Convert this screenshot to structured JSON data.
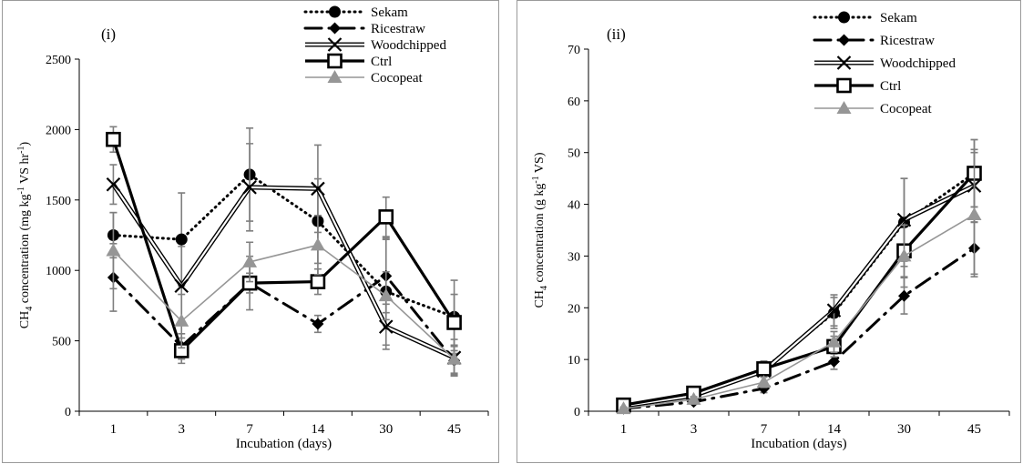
{
  "chart_data": [
    {
      "type": "line",
      "panel_label": "(i)",
      "categories": [
        "1",
        "3",
        "7",
        "14",
        "30",
        "45"
      ],
      "xlabel": "Incubation (days)",
      "ylabel_main": "CH",
      "ylabel_sub": "4",
      "ylabel_rest": " concentration (mg  kg",
      "ylabel_sup1": "-1",
      "ylabel_mid": " VS hr",
      "ylabel_sup2": "-1",
      "ylabel_end": ")",
      "ylim": [
        0,
        2500
      ],
      "yticks": [
        0,
        500,
        1000,
        1500,
        2000,
        2500
      ],
      "grid": false,
      "legend_position": "top-right",
      "series": [
        {
          "name": "Sekam",
          "marker": "circle",
          "line": "dotted",
          "color": "#000000",
          "values": [
            1250,
            1220,
            1680,
            1350,
            850,
            670
          ],
          "errors": [
            160,
            330,
            330,
            300,
            380,
            260
          ]
        },
        {
          "name": "Ricestraw",
          "marker": "diamond",
          "line": "dashdot",
          "color": "#000000",
          "values": [
            950,
            460,
            910,
            620,
            960,
            360
          ],
          "errors": [
            240,
            90,
            190,
            60,
            260,
            100
          ]
        },
        {
          "name": "Woodchipped",
          "marker": "x",
          "line": "double",
          "color": "#000000",
          "values": [
            1610,
            890,
            1590,
            1580,
            600,
            380
          ],
          "errors": [
            140,
            280,
            310,
            310,
            160,
            130
          ]
        },
        {
          "name": "Ctrl",
          "marker": "square",
          "line": "thick",
          "color": "#000000",
          "values": [
            1930,
            430,
            910,
            920,
            1380,
            630
          ],
          "errors": [
            90,
            90,
            70,
            90,
            140,
            200
          ]
        },
        {
          "name": "Cocopeat",
          "marker": "triangle",
          "line": "solid",
          "color": "#969696",
          "values": [
            1140,
            640,
            1060,
            1180,
            820,
            370
          ],
          "errors": [
            270,
            190,
            140,
            210,
            170,
            100
          ]
        }
      ]
    },
    {
      "type": "line",
      "panel_label": "(ii)",
      "categories": [
        "1",
        "3",
        "7",
        "14",
        "30",
        "45"
      ],
      "xlabel": "Incubation (days)",
      "ylabel_main": "CH",
      "ylabel_sub": "4",
      "ylabel_rest": " concentration (g  kg",
      "ylabel_sup1": "-1",
      "ylabel_mid": " VS)",
      "ylabel_sup2": "",
      "ylabel_end": "",
      "ylim": [
        0,
        70
      ],
      "yticks": [
        0,
        10,
        20,
        30,
        40,
        50,
        60,
        70
      ],
      "grid": false,
      "legend_position": "top-right",
      "series": [
        {
          "name": "Sekam",
          "marker": "circle",
          "line": "dotted",
          "color": "#000000",
          "values": [
            1.0,
            3.2,
            8.2,
            19.0,
            36.5,
            46.0
          ],
          "errors": [
            0.4,
            0.5,
            1.5,
            3.0,
            8.5,
            6.5
          ]
        },
        {
          "name": "Ricestraw",
          "marker": "diamond",
          "line": "dashdot",
          "color": "#000000",
          "values": [
            0.5,
            1.8,
            4.4,
            9.6,
            22.3,
            31.5
          ],
          "errors": [
            0.3,
            0.4,
            0.8,
            1.5,
            3.5,
            5.0
          ]
        },
        {
          "name": "Woodchipped",
          "marker": "x",
          "line": "double",
          "color": "#000000",
          "values": [
            1.0,
            3.0,
            7.8,
            19.5,
            37.0,
            43.6
          ],
          "errors": [
            0.4,
            0.5,
            1.2,
            3.0,
            8.0,
            7.0
          ]
        },
        {
          "name": "Ctrl",
          "marker": "square",
          "line": "thick",
          "color": "#000000",
          "values": [
            1.2,
            3.5,
            8.2,
            12.5,
            31.0,
            46.0
          ],
          "errors": [
            0.4,
            0.5,
            1.0,
            2.0,
            5.0,
            6.5
          ]
        },
        {
          "name": "Cocopeat",
          "marker": "triangle",
          "line": "solid",
          "color": "#969696",
          "values": [
            0.5,
            2.3,
            5.6,
            13.4,
            30.0,
            38.0
          ],
          "errors": [
            0.3,
            0.5,
            1.0,
            2.0,
            6.0,
            12.0
          ]
        }
      ]
    }
  ]
}
